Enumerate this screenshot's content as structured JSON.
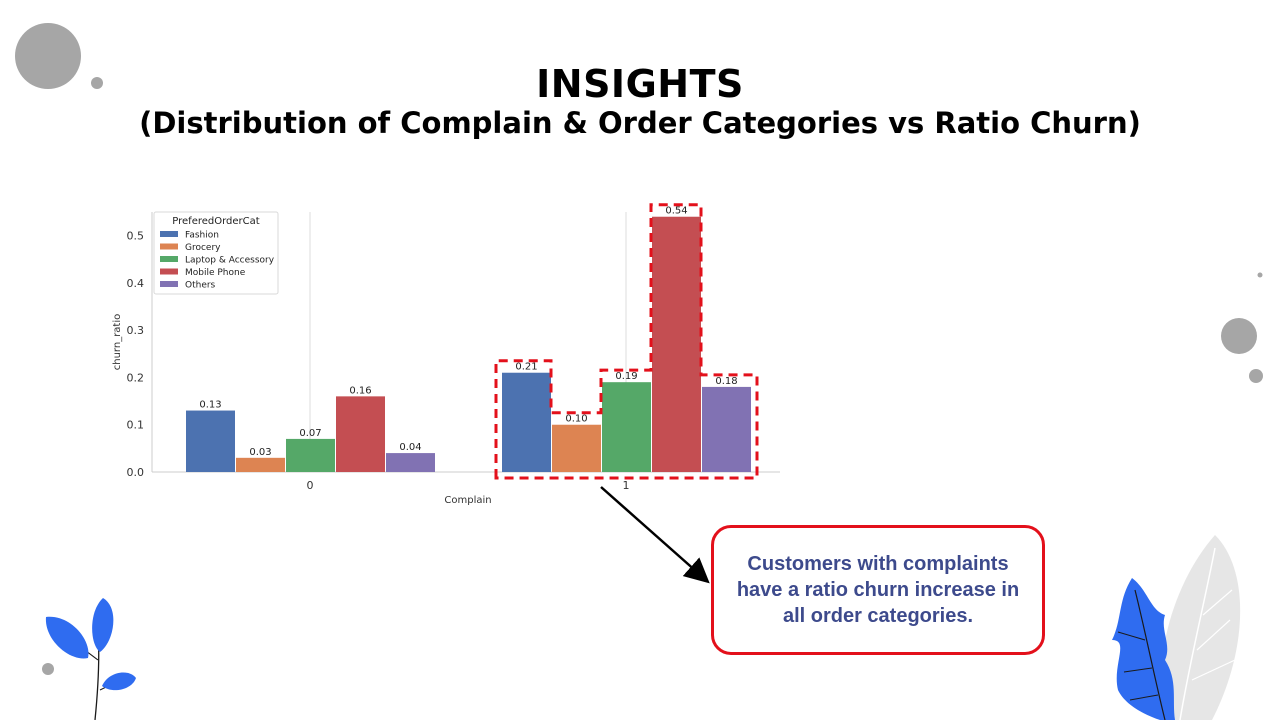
{
  "slide": {
    "title": "INSIGHTS",
    "subtitle": "(Distribution of Complain & Order Categories vs Ratio Churn)",
    "callout": "Customers with complaints have a ratio churn increase in all order categories."
  },
  "colors": {
    "highlight": "#e3101b",
    "callout_text": "#3d4a8c",
    "leaf_blue": "#2f6cf0",
    "leaf_gray": "#e6e6e6",
    "circle_gray": "#a6a6a6"
  },
  "chart_data": {
    "type": "bar",
    "xlabel": "Complain",
    "ylabel": "churn_ratio",
    "categories": [
      "0",
      "1"
    ],
    "ylim": [
      0,
      0.55
    ],
    "yticks": [
      0.0,
      0.1,
      0.2,
      0.3,
      0.4,
      0.5
    ],
    "legend_title": "PreferedOrderCat",
    "legend_position": "top-left",
    "grid": "vertical lines at categories",
    "series": [
      {
        "name": "Fashion",
        "color": "#4c72b0",
        "values": [
          0.13,
          0.21
        ],
        "labels": [
          "0.13",
          "0.21"
        ]
      },
      {
        "name": "Grocery",
        "color": "#dd8452",
        "values": [
          0.03,
          0.1
        ],
        "labels": [
          "0.03",
          "0.10"
        ]
      },
      {
        "name": "Laptop & Accessory",
        "color": "#55a868",
        "values": [
          0.07,
          0.19
        ],
        "labels": [
          "0.07",
          "0.19"
        ]
      },
      {
        "name": "Mobile Phone",
        "color": "#c44e52",
        "values": [
          0.16,
          0.54
        ],
        "labels": [
          "0.16",
          "0.54"
        ]
      },
      {
        "name": "Others",
        "color": "#8172b3",
        "values": [
          0.04,
          0.18
        ],
        "labels": [
          "0.04",
          "0.18"
        ]
      }
    ]
  }
}
